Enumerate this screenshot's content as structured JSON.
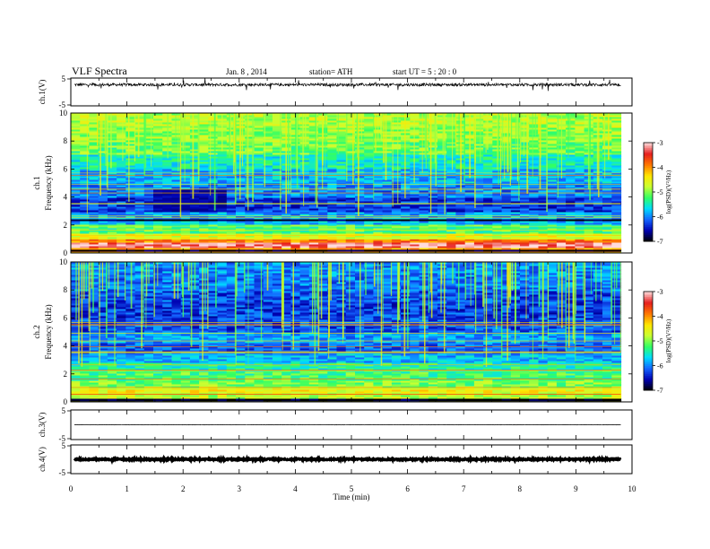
{
  "header": {
    "title": "VLF  Spectra",
    "date": "Jan.  8  ,  2014",
    "station": "station= ATH",
    "start": "start  UT  =    5  : 20 : 0"
  },
  "colors": {
    "cmap": [
      "#000000",
      "#0000b0",
      "#1464ff",
      "#00dcff",
      "#32ff64",
      "#c8ff32",
      "#ffe600",
      "#ff7800",
      "#e61e1e",
      "#ffdcdc"
    ]
  },
  "chart_data": [
    {
      "type": "line",
      "id": "ch1",
      "ylabel": "ch.1(V)",
      "ylim": [
        -5,
        5
      ],
      "yticks": [
        "5",
        "-5"
      ],
      "description_level": 2.6,
      "noise_amplitude": 0.5,
      "spike_amplitude": 2.2,
      "data_end_min": 9.8
    },
    {
      "type": "heatmap",
      "id": "ch1-spec",
      "ylabel": "ch.1",
      "ylabel2": "Frequency  (kHz)",
      "ylim": [
        0,
        10
      ],
      "yticks": [
        "0",
        "2",
        "4",
        "6",
        "8",
        "10"
      ],
      "colorbar": {
        "label": "log(PSD)(V²/Hz)",
        "range": [
          -7,
          -3
        ],
        "ticks": [
          "-3",
          "-4",
          "-5",
          "-6",
          "-7"
        ]
      },
      "profile": [
        {
          "f": [
            0.0,
            0.1
          ],
          "v": 0.55
        },
        {
          "f": [
            0.1,
            0.2
          ],
          "v": 0.0
        },
        {
          "f": [
            0.2,
            0.4
          ],
          "v": 0.72
        },
        {
          "f": [
            0.4,
            0.8
          ],
          "v": 0.95
        },
        {
          "f": [
            0.8,
            1.0
          ],
          "v": 0.78
        },
        {
          "f": [
            1.0,
            1.4
          ],
          "v": 0.6
        },
        {
          "f": [
            1.4,
            2.0
          ],
          "v": 0.45
        },
        {
          "f": [
            2.0,
            2.3
          ],
          "v": 0.3
        },
        {
          "f": [
            2.3,
            2.5
          ],
          "v": 0.0
        },
        {
          "f": [
            2.5,
            3.0
          ],
          "v": 0.28
        },
        {
          "f": [
            3.0,
            4.0
          ],
          "v": 0.18
        },
        {
          "f": [
            4.0,
            5.0
          ],
          "v": 0.25
        },
        {
          "f": [
            5.0,
            6.0
          ],
          "v": 0.3
        },
        {
          "f": [
            6.0,
            7.0
          ],
          "v": 0.38
        },
        {
          "f": [
            7.0,
            8.0
          ],
          "v": 0.48
        },
        {
          "f": [
            8.0,
            9.0
          ],
          "v": 0.52
        },
        {
          "f": [
            9.0,
            10.0
          ],
          "v": 0.55
        }
      ],
      "dark_region": {
        "t": [
          1.45,
          2.8
        ],
        "f": [
          3.0,
          4.6
        ]
      },
      "data_end_min": 9.8
    },
    {
      "type": "heatmap",
      "id": "ch2-spec",
      "ylabel": "ch.2",
      "ylabel2": "Frequency  (kHz)",
      "ylim": [
        0,
        10
      ],
      "yticks": [
        "0",
        "2",
        "4",
        "6",
        "8",
        "10"
      ],
      "colorbar": {
        "label": "log(PSD)(V²/Hz)",
        "range": [
          -7,
          -3
        ],
        "ticks": [
          "-3",
          "-4",
          "-5",
          "-6",
          "-7"
        ]
      },
      "profile": [
        {
          "f": [
            0.0,
            0.2
          ],
          "v": 0.0
        },
        {
          "f": [
            0.2,
            0.6
          ],
          "v": 0.55
        },
        {
          "f": [
            0.6,
            1.0
          ],
          "v": 0.62
        },
        {
          "f": [
            1.0,
            1.6
          ],
          "v": 0.5
        },
        {
          "f": [
            1.6,
            2.2
          ],
          "v": 0.45
        },
        {
          "f": [
            2.2,
            2.8
          ],
          "v": 0.4
        },
        {
          "f": [
            2.8,
            3.4
          ],
          "v": 0.3
        },
        {
          "f": [
            3.4,
            4.2
          ],
          "v": 0.22
        },
        {
          "f": [
            4.2,
            5.0
          ],
          "v": 0.28
        },
        {
          "f": [
            5.0,
            6.0
          ],
          "v": 0.2
        },
        {
          "f": [
            6.0,
            7.0
          ],
          "v": 0.18
        },
        {
          "f": [
            7.0,
            8.0
          ],
          "v": 0.2
        },
        {
          "f": [
            8.0,
            9.0
          ],
          "v": 0.24
        },
        {
          "f": [
            9.0,
            10.0
          ],
          "v": 0.26
        }
      ],
      "dark_region": null,
      "data_end_min": 9.8
    },
    {
      "type": "line",
      "id": "ch3",
      "ylabel": "ch.3(V)",
      "ylim": [
        -5,
        5
      ],
      "yticks": [
        "5",
        "-5"
      ],
      "description_level": 0.0,
      "noise_amplitude": 0.05,
      "spike_amplitude": 0.1,
      "data_end_min": 9.8
    },
    {
      "type": "line",
      "id": "ch4",
      "ylabel": "ch.4(V)",
      "ylim": [
        -5,
        5
      ],
      "yticks": [
        "5",
        "-5"
      ],
      "description_level": 0.0,
      "noise_amplitude": 0.25,
      "spike_amplitude": 0.3,
      "data_end_min": 9.8
    }
  ],
  "xaxis": {
    "xlabel": "Time  (min)",
    "xlim": [
      0,
      10
    ],
    "xticks": [
      "0",
      "1",
      "2",
      "3",
      "4",
      "5",
      "6",
      "7",
      "8",
      "9",
      "10"
    ]
  }
}
